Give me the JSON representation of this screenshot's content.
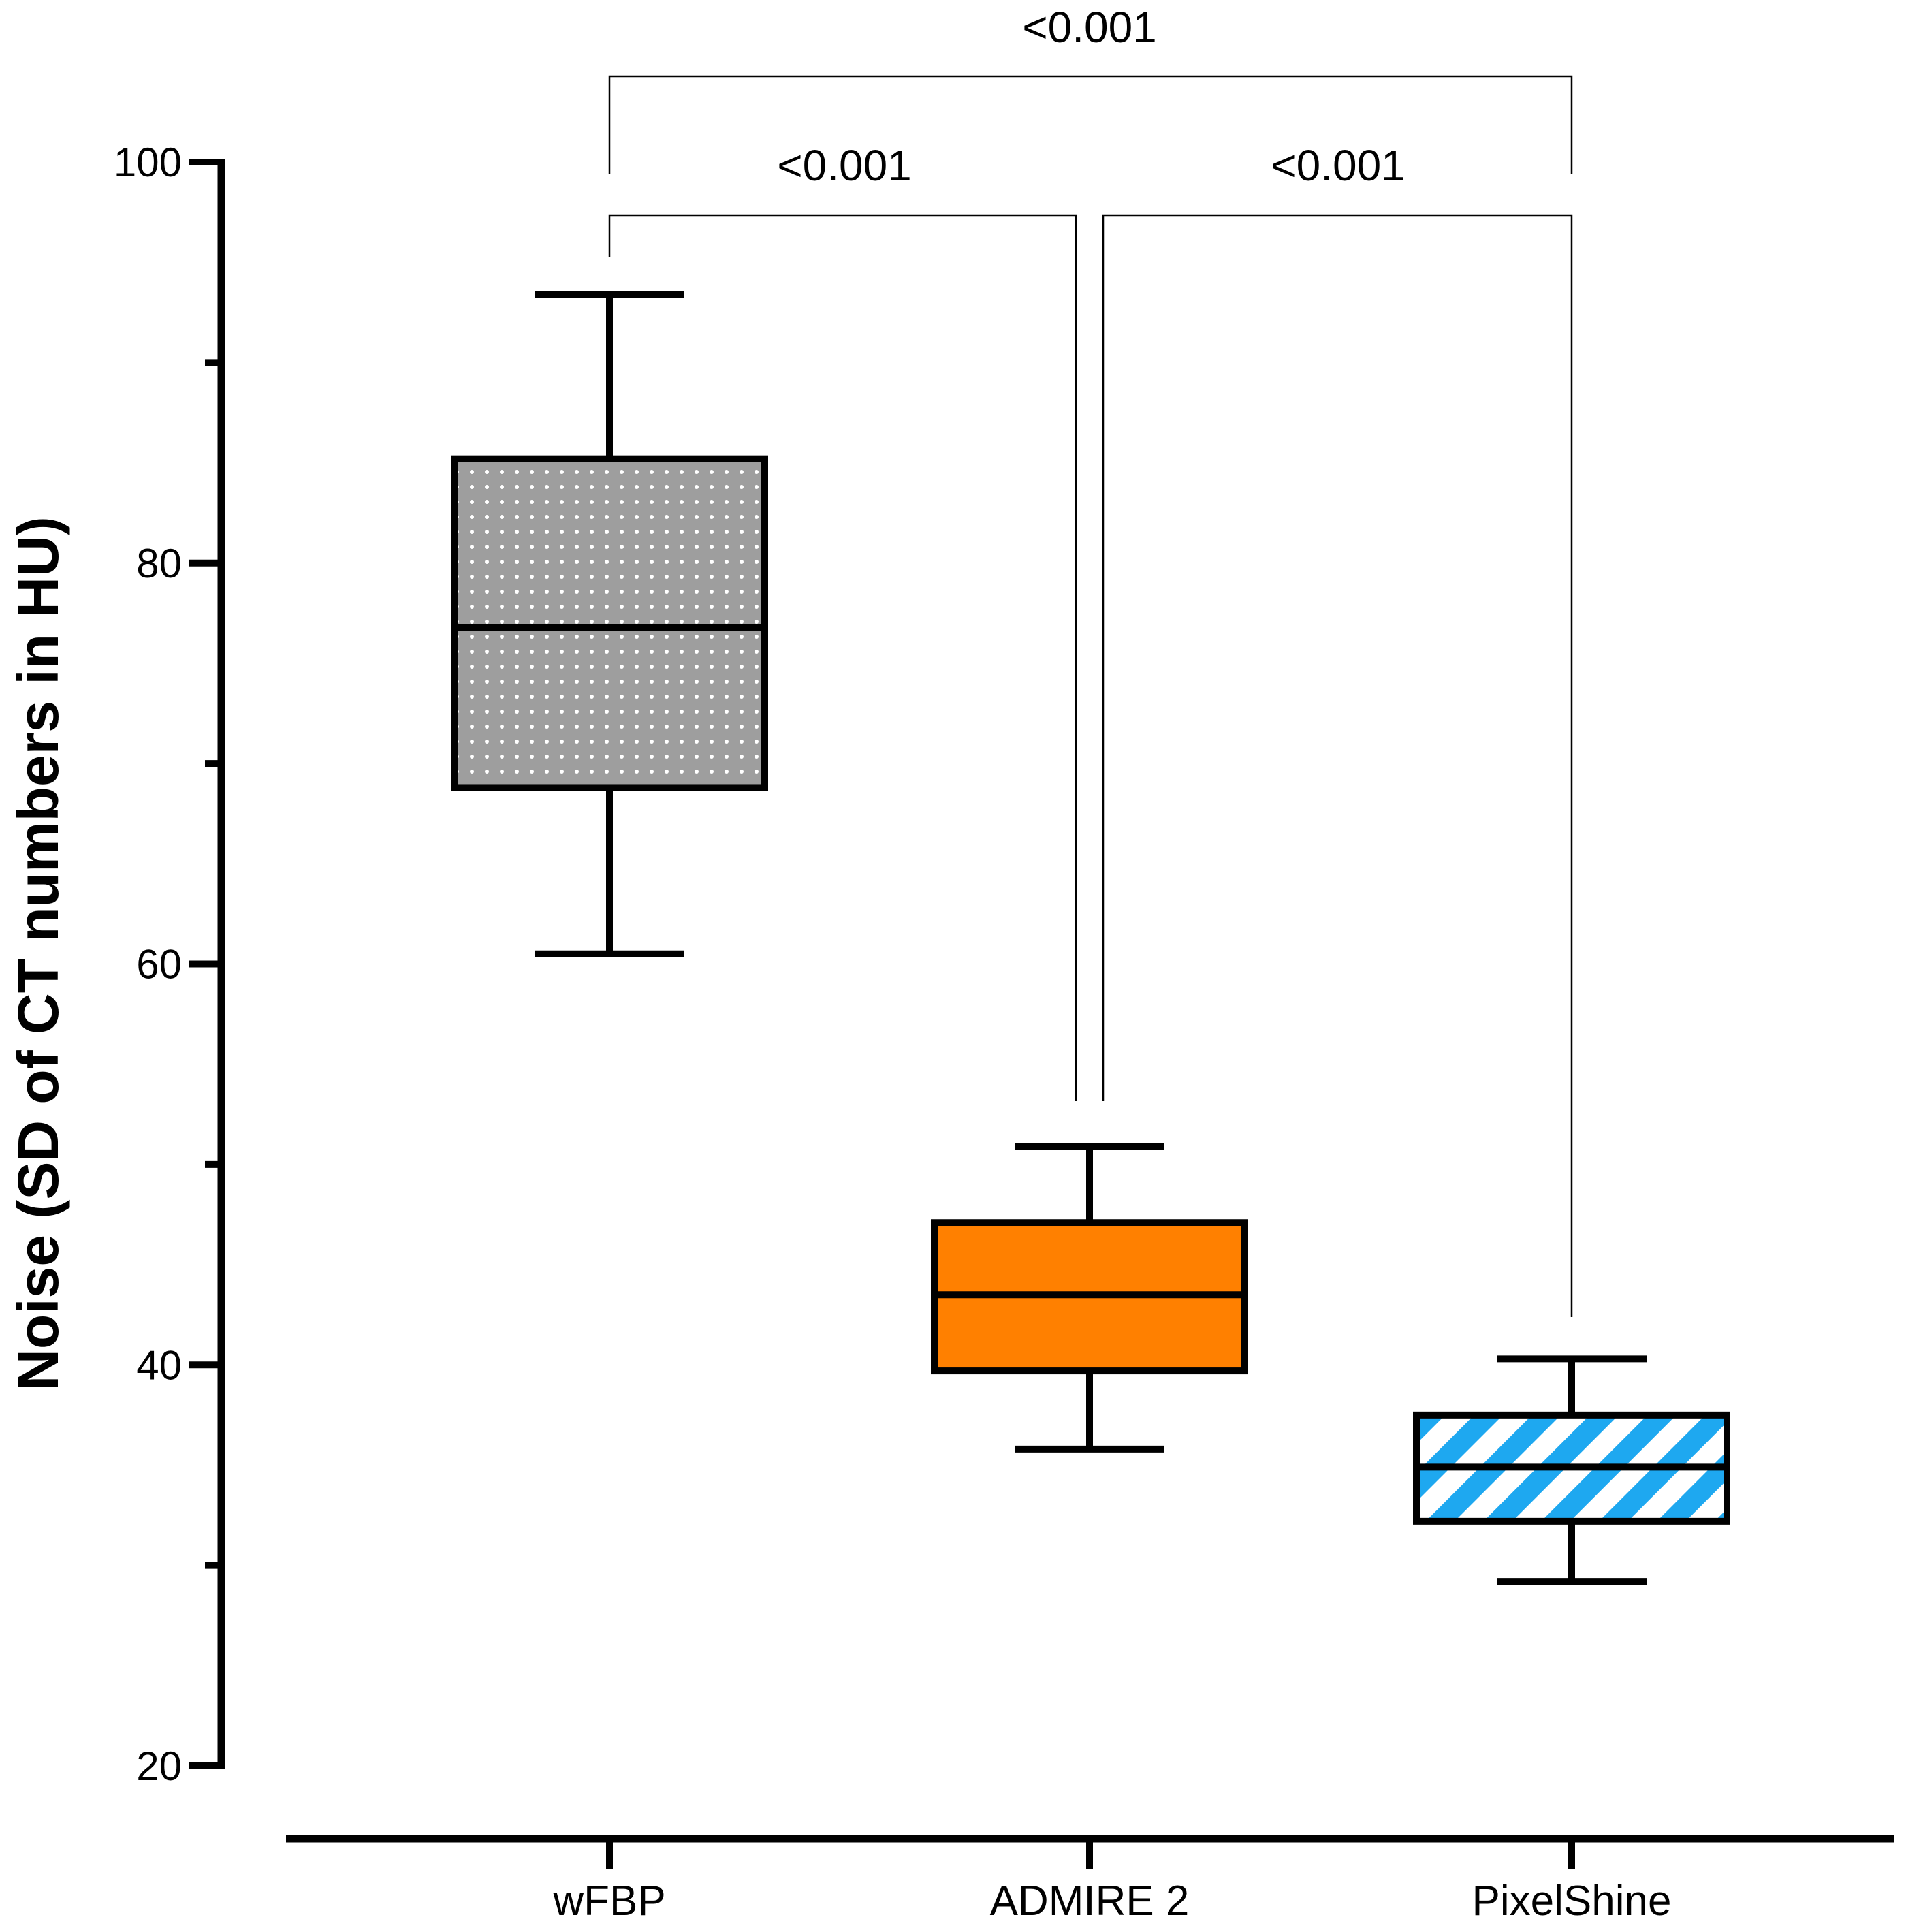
{
  "chart_data": {
    "type": "box",
    "title": "",
    "xlabel": "",
    "ylabel": "Noise (SD of CT numbers in HU)",
    "ylim": [
      20,
      100
    ],
    "y_ticks": [
      20,
      40,
      60,
      80,
      100
    ],
    "y_minor_ticks": [
      30,
      50,
      70,
      90
    ],
    "categories": [
      "wFBP",
      "ADMIRE 2",
      "PixelShine"
    ],
    "series": [
      {
        "name": "wFBP",
        "min": 60.5,
        "q1": 68.8,
        "median": 76.8,
        "q3": 85.2,
        "max": 93.4,
        "fill": "#9e9e9e",
        "pattern": "dots"
      },
      {
        "name": "ADMIRE 2",
        "min": 35.8,
        "q1": 39.7,
        "median": 43.5,
        "q3": 47.1,
        "max": 50.9,
        "fill": "#ff8000",
        "pattern": "solid"
      },
      {
        "name": "PixelShine",
        "min": 29.2,
        "q1": 32.2,
        "median": 34.9,
        "q3": 37.5,
        "max": 40.3,
        "fill": "#1ea8f0",
        "pattern": "stripes"
      }
    ],
    "comparisons": [
      {
        "from": "wFBP",
        "to": "ADMIRE 2",
        "label": "<0.001"
      },
      {
        "from": "ADMIRE 2",
        "to": "PixelShine",
        "label": "<0.001"
      },
      {
        "from": "wFBP",
        "to": "PixelShine",
        "label": "<0.001"
      }
    ]
  }
}
